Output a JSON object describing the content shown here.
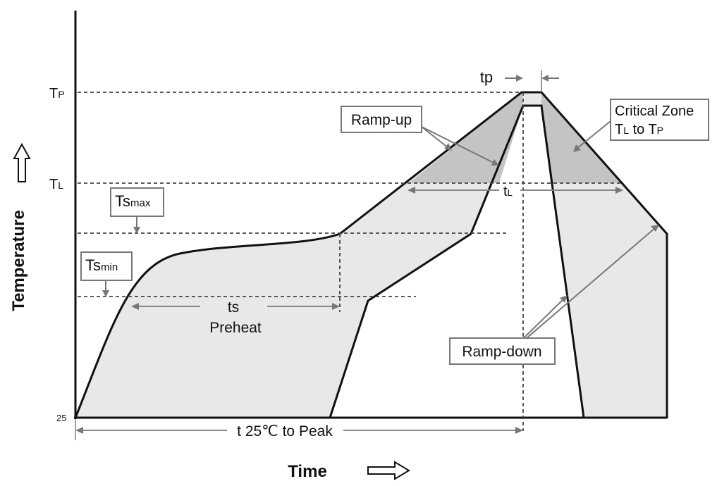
{
  "diagram": {
    "axes": {
      "y_title": "Temperature",
      "x_title": "Time",
      "y_arrow_icon": "hollow-up-arrow",
      "x_arrow_icon": "hollow-right-arrow"
    },
    "y_ticks": {
      "tp_main": "T",
      "tp_sub": "P",
      "tl_main": "T",
      "tl_sub": "L",
      "base": "25"
    },
    "labels": {
      "ts_max_main": "Ts",
      "ts_max_sub": "max",
      "ts_min_main": "Ts",
      "ts_min_sub": "min",
      "ramp_up": "Ramp-up",
      "ramp_down": "Ramp-down",
      "critical_zone_line1": "Critical Zone",
      "critical_zone_line2_a": "T",
      "critical_zone_line2_a_sub": "L",
      "critical_zone_line2_mid": " to T",
      "critical_zone_line2_b_sub": "P",
      "tp": "tp",
      "tl_main": "t",
      "tl_sub": "L",
      "ts": "ts",
      "preheat": "Preheat",
      "t25_to_peak": "t 25℃ to Peak"
    },
    "colors": {
      "envelope_fill": "#e8e8e8",
      "critical_zone_fill": "#c4c4c4",
      "outline": "#111111",
      "callout_border": "#777777",
      "arrow": "#777777"
    }
  }
}
